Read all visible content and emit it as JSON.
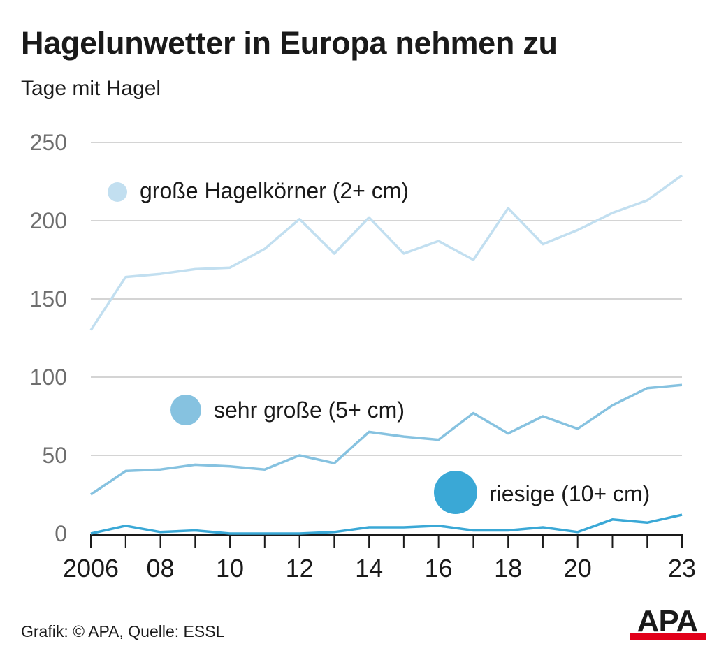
{
  "header": {
    "title": "Hagelunwetter in Europa nehmen zu",
    "subtitle": "Tage mit Hagel"
  },
  "chart_data": {
    "type": "line",
    "title": "Hagelunwetter in Europa nehmen zu",
    "ylabel": "Tage mit Hagel",
    "xlabel": "",
    "ylim": [
      0,
      250
    ],
    "y_ticks": [
      0,
      50,
      100,
      150,
      200,
      250
    ],
    "grid": true,
    "x": [
      2006,
      2007,
      2008,
      2009,
      2010,
      2011,
      2012,
      2013,
      2014,
      2015,
      2016,
      2017,
      2018,
      2019,
      2020,
      2021,
      2022,
      2023
    ],
    "x_tick_values": [
      2006,
      2008,
      2010,
      2012,
      2014,
      2016,
      2018,
      2020,
      2023
    ],
    "x_tick_labels": [
      "2006",
      "08",
      "10",
      "12",
      "14",
      "16",
      "18",
      "20",
      "23"
    ],
    "series": [
      {
        "name": "große Hagelkörner (2+ cm)",
        "color": "#c2dff0",
        "values": [
          130,
          164,
          166,
          169,
          170,
          182,
          201,
          179,
          202,
          179,
          187,
          175,
          208,
          185,
          194,
          205,
          213,
          229
        ]
      },
      {
        "name": "sehr große (5+ cm)",
        "color": "#86c2e0",
        "values": [
          25,
          40,
          41,
          44,
          43,
          41,
          50,
          45,
          65,
          62,
          60,
          77,
          64,
          75,
          67,
          82,
          93,
          95
        ]
      },
      {
        "name": "riesige (10+ cm)",
        "color": "#3aa8d6",
        "values": [
          0,
          5,
          1,
          2,
          0,
          0,
          0,
          1,
          4,
          4,
          5,
          2,
          2,
          4,
          1,
          9,
          7,
          12
        ]
      }
    ]
  },
  "footer": {
    "credit": "Grafik: © APA, Quelle: ESSL"
  },
  "logo": {
    "text": "APA",
    "colors": {
      "text": "#1a1a1a",
      "bar": "#e2001a"
    }
  }
}
